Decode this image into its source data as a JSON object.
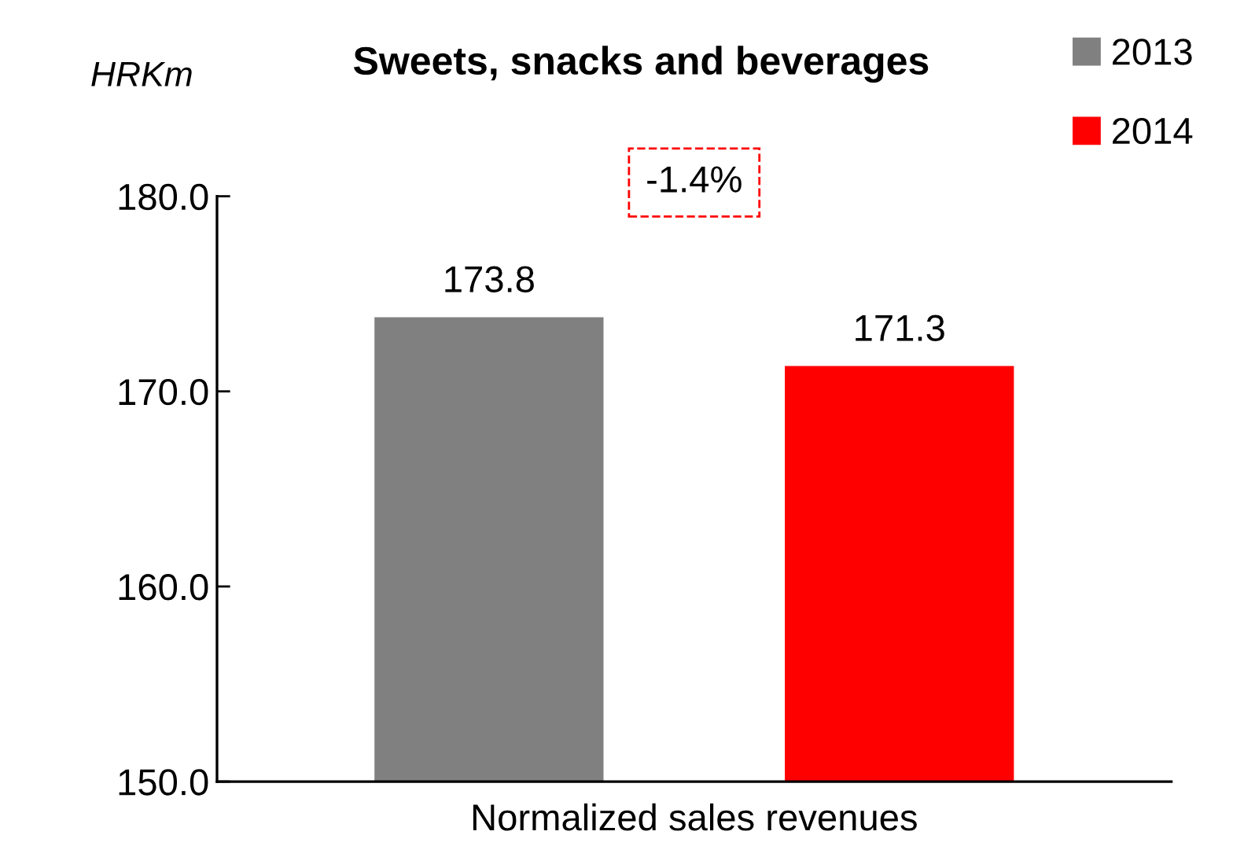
{
  "chart_data": {
    "type": "bar",
    "title": "Sweets, snacks and beverages",
    "ylabel": "HRKm",
    "categories": [
      "Normalized sales revenues"
    ],
    "series": [
      {
        "name": "2013",
        "color": "#808080",
        "values": [
          173.8
        ]
      },
      {
        "name": "2014",
        "color": "#ff0000",
        "values": [
          171.3
        ]
      }
    ],
    "ylim": [
      150,
      180
    ],
    "yticks": [
      {
        "value": 150,
        "label": "150.0"
      },
      {
        "value": 160,
        "label": "160.0"
      },
      {
        "value": 170,
        "label": "170.0"
      },
      {
        "value": 180,
        "label": "180.0"
      }
    ],
    "annotations": [
      "-1.4%"
    ],
    "data_labels": true,
    "grid": false,
    "legend": "top right"
  }
}
